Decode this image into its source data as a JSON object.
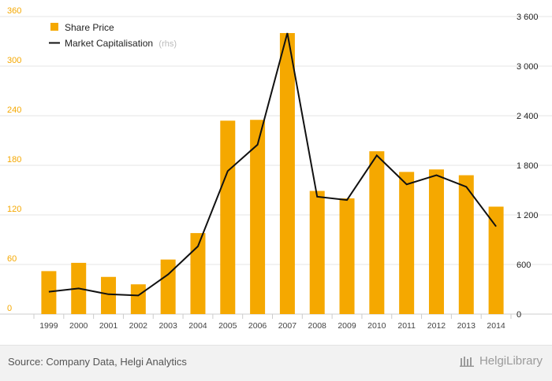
{
  "chart_data": {
    "type": "bar+line",
    "categories": [
      "1999",
      "2000",
      "2001",
      "2002",
      "2003",
      "2004",
      "2005",
      "2006",
      "2007",
      "2008",
      "2009",
      "2010",
      "2011",
      "2012",
      "2013",
      "2014"
    ],
    "series": [
      {
        "name": "Share Price",
        "type": "bar",
        "axis": "left",
        "color": "#f5a800",
        "values": [
          52,
          62,
          45,
          36,
          66,
          98,
          234,
          235,
          340,
          149,
          140,
          197,
          172,
          175,
          168,
          130
        ]
      },
      {
        "name": "Market Capitalisation",
        "type": "line",
        "axis": "right",
        "color": "#111111",
        "values": [
          270,
          310,
          240,
          225,
          480,
          820,
          1730,
          2050,
          3400,
          1420,
          1380,
          1920,
          1570,
          1680,
          1540,
          1060
        ]
      }
    ],
    "legend": {
      "share_price_label": "Share Price",
      "market_cap_label": "Market Capitalisation",
      "market_cap_suffix": "(rhs)",
      "position": "top-left"
    },
    "left_axis": {
      "ticks": [
        "0",
        "60",
        "120",
        "180",
        "240",
        "300",
        "360"
      ],
      "range": [
        0,
        360
      ],
      "color": "#f5a800"
    },
    "right_axis": {
      "ticks": [
        "0",
        "600",
        "1 200",
        "1 800",
        "2 400",
        "3 000",
        "3 600"
      ],
      "range": [
        0,
        3600
      ]
    },
    "grid": true
  },
  "footer": {
    "source": "Source: Company Data, Helgi Analytics",
    "brand": "HelgiLibrary"
  }
}
